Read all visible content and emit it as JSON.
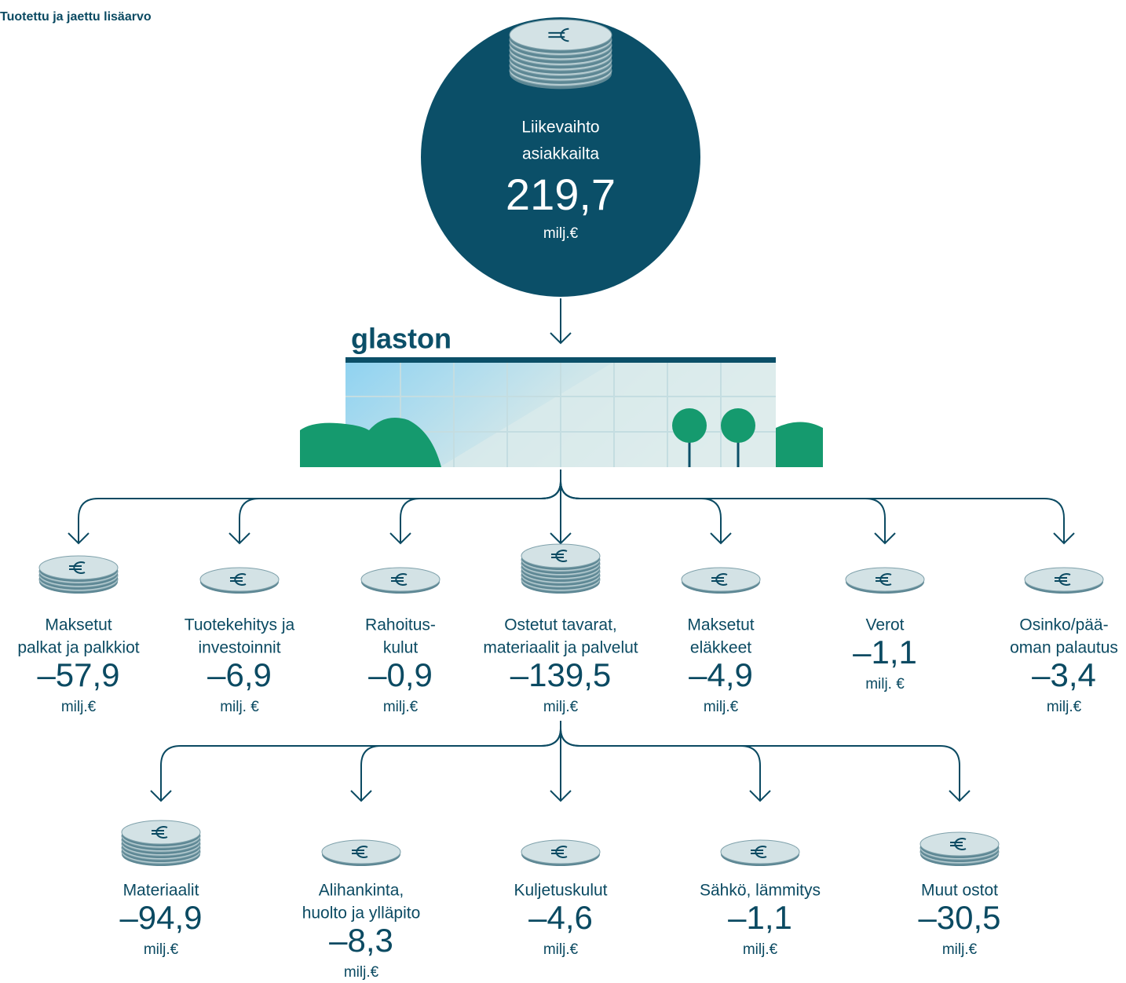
{
  "title": "Tuotettu ja jaettu lisäarvo",
  "revenue": {
    "label": [
      "Liikevaihto",
      "asiakkailta"
    ],
    "value": "219,7",
    "unit": "milj.€"
  },
  "logo": "glaston",
  "distribution": [
    {
      "label": [
        "Maksetut",
        "palkat ja palkkiot"
      ],
      "value": "–57,9",
      "unit": "milj.€"
    },
    {
      "label": [
        "Tuotekehitys ja",
        "investoinnit"
      ],
      "value": "–6,9",
      "unit": "milj. €"
    },
    {
      "label": [
        "Rahoitus-",
        "kulut"
      ],
      "value": "–0,9",
      "unit": "milj.€"
    },
    {
      "label": [
        "Ostetut tavarat,",
        "materiaalit ja palvelut"
      ],
      "value": "–139,5",
      "unit": "milj.€"
    },
    {
      "label": [
        "Maksetut",
        "eläkkeet"
      ],
      "value": "–4,9",
      "unit": "milj.€"
    },
    {
      "label": [
        "Verot"
      ],
      "value": "–1,1",
      "unit": "milj. €"
    },
    {
      "label": [
        "Osinko/pää-",
        "oman palautus"
      ],
      "value": "–3,4",
      "unit": "milj.€"
    }
  ],
  "purchases": [
    {
      "label": [
        "Materiaalit"
      ],
      "value": "–94,9",
      "unit": "milj.€"
    },
    {
      "label": [
        "Alihankinta,",
        "huolto ja ylläpito"
      ],
      "value": "–8,3",
      "unit": "milj.€"
    },
    {
      "label": [
        "Kuljetuskulut"
      ],
      "value": "–4,6",
      "unit": "milj.€"
    },
    {
      "label": [
        "Sähkö, lämmitys"
      ],
      "value": "–1,1",
      "unit": "milj.€"
    },
    {
      "label": [
        "Muut ostot"
      ],
      "value": "–30,5",
      "unit": "milj.€"
    }
  ]
}
